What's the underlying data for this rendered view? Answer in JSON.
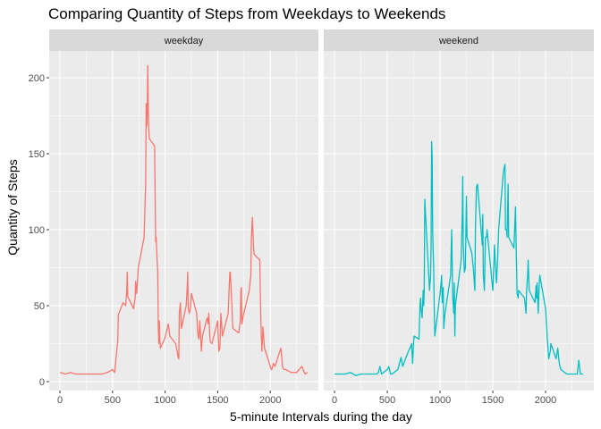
{
  "chart_data": {
    "type": "line",
    "title": "Comparing Quantity of Steps from Weekdays to Weekends",
    "xlabel": "5-minute Intervals during the day",
    "ylabel": "Quantity of Steps",
    "xlim": [
      0,
      2355
    ],
    "ylim": [
      0,
      210
    ],
    "x_ticks": [
      0,
      500,
      1000,
      1500,
      2000
    ],
    "y_ticks": [
      0,
      50,
      100,
      150,
      200
    ],
    "grid": true,
    "legend": "none",
    "panel_background": "#ebebeb",
    "strip_background": "#d9d9d9",
    "grid_color": "#ffffff",
    "series": [
      {
        "name": "weekday",
        "color": "#F8766D",
        "points": [
          [
            0,
            6
          ],
          [
            50,
            5
          ],
          [
            100,
            6
          ],
          [
            150,
            5
          ],
          [
            200,
            5
          ],
          [
            250,
            5
          ],
          [
            300,
            5
          ],
          [
            400,
            5
          ],
          [
            450,
            6
          ],
          [
            500,
            8
          ],
          [
            520,
            6
          ],
          [
            550,
            27
          ],
          [
            555,
            44
          ],
          [
            600,
            52
          ],
          [
            625,
            50
          ],
          [
            635,
            60
          ],
          [
            640,
            72
          ],
          [
            645,
            56
          ],
          [
            700,
            48
          ],
          [
            715,
            55
          ],
          [
            720,
            66
          ],
          [
            730,
            58
          ],
          [
            745,
            75
          ],
          [
            800,
            95
          ],
          [
            815,
            130
          ],
          [
            820,
            183
          ],
          [
            825,
            168
          ],
          [
            830,
            176
          ],
          [
            835,
            208
          ],
          [
            840,
            180
          ],
          [
            845,
            165
          ],
          [
            850,
            160
          ],
          [
            900,
            155
          ],
          [
            910,
            92
          ],
          [
            915,
            95
          ],
          [
            925,
            78
          ],
          [
            930,
            72
          ],
          [
            935,
            36
          ],
          [
            940,
            25
          ],
          [
            945,
            40
          ],
          [
            950,
            27
          ],
          [
            955,
            22
          ],
          [
            1000,
            29
          ],
          [
            1030,
            38
          ],
          [
            1045,
            30
          ],
          [
            1100,
            25
          ],
          [
            1115,
            20
          ],
          [
            1120,
            17
          ],
          [
            1130,
            15
          ],
          [
            1135,
            45
          ],
          [
            1145,
            52
          ],
          [
            1155,
            35
          ],
          [
            1200,
            50
          ],
          [
            1210,
            62
          ],
          [
            1215,
            72
          ],
          [
            1220,
            48
          ],
          [
            1230,
            45
          ],
          [
            1240,
            48
          ],
          [
            1250,
            58
          ],
          [
            1300,
            45
          ],
          [
            1310,
            32
          ],
          [
            1320,
            28
          ],
          [
            1330,
            40
          ],
          [
            1345,
            20
          ],
          [
            1355,
            30
          ],
          [
            1400,
            42
          ],
          [
            1410,
            38
          ],
          [
            1415,
            45
          ],
          [
            1425,
            30
          ],
          [
            1430,
            26
          ],
          [
            1445,
            25
          ],
          [
            1500,
            40
          ],
          [
            1510,
            20
          ],
          [
            1520,
            22
          ],
          [
            1530,
            45
          ],
          [
            1545,
            30
          ],
          [
            1600,
            45
          ],
          [
            1615,
            72
          ],
          [
            1620,
            72
          ],
          [
            1635,
            50
          ],
          [
            1640,
            40
          ],
          [
            1645,
            35
          ],
          [
            1700,
            32
          ],
          [
            1715,
            40
          ],
          [
            1720,
            60
          ],
          [
            1725,
            62
          ],
          [
            1730,
            38
          ],
          [
            1745,
            44
          ],
          [
            1800,
            60
          ],
          [
            1815,
            70
          ],
          [
            1820,
            94
          ],
          [
            1830,
            108
          ],
          [
            1840,
            90
          ],
          [
            1845,
            84
          ],
          [
            1900,
            80
          ],
          [
            1910,
            42
          ],
          [
            1915,
            30
          ],
          [
            1920,
            20
          ],
          [
            1930,
            36
          ],
          [
            1945,
            22
          ],
          [
            2000,
            10
          ],
          [
            2010,
            8
          ],
          [
            2015,
            8
          ],
          [
            2030,
            12
          ],
          [
            2045,
            10
          ],
          [
            2100,
            22
          ],
          [
            2110,
            16
          ],
          [
            2115,
            10
          ],
          [
            2130,
            8
          ],
          [
            2145,
            8
          ],
          [
            2200,
            6
          ],
          [
            2250,
            6
          ],
          [
            2300,
            10
          ],
          [
            2330,
            5
          ],
          [
            2355,
            6
          ]
        ]
      },
      {
        "name": "weekend",
        "color": "#00BFC4",
        "points": [
          [
            0,
            5
          ],
          [
            100,
            5
          ],
          [
            150,
            6
          ],
          [
            200,
            4
          ],
          [
            250,
            5
          ],
          [
            300,
            5
          ],
          [
            400,
            5
          ],
          [
            415,
            6
          ],
          [
            430,
            10
          ],
          [
            445,
            5
          ],
          [
            500,
            8
          ],
          [
            515,
            10
          ],
          [
            530,
            5
          ],
          [
            545,
            5
          ],
          [
            600,
            8
          ],
          [
            615,
            12
          ],
          [
            630,
            16
          ],
          [
            645,
            10
          ],
          [
            700,
            20
          ],
          [
            715,
            22
          ],
          [
            730,
            25
          ],
          [
            740,
            12
          ],
          [
            750,
            27
          ],
          [
            755,
            30
          ],
          [
            800,
            28
          ],
          [
            810,
            50
          ],
          [
            815,
            55
          ],
          [
            820,
            48
          ],
          [
            830,
            42
          ],
          [
            840,
            60
          ],
          [
            845,
            50
          ],
          [
            850,
            60
          ],
          [
            855,
            120
          ],
          [
            900,
            60
          ],
          [
            910,
            70
          ],
          [
            915,
            88
          ],
          [
            920,
            158
          ],
          [
            925,
            148
          ],
          [
            930,
            98
          ],
          [
            940,
            72
          ],
          [
            945,
            48
          ],
          [
            950,
            30
          ],
          [
            1000,
            58
          ],
          [
            1015,
            70
          ],
          [
            1020,
            52
          ],
          [
            1030,
            62
          ],
          [
            1035,
            35
          ],
          [
            1045,
            44
          ],
          [
            1100,
            70
          ],
          [
            1110,
            100
          ],
          [
            1115,
            78
          ],
          [
            1120,
            55
          ],
          [
            1130,
            45
          ],
          [
            1135,
            65
          ],
          [
            1140,
            30
          ],
          [
            1145,
            50
          ],
          [
            1200,
            80
          ],
          [
            1210,
            108
          ],
          [
            1215,
            135
          ],
          [
            1220,
            90
          ],
          [
            1230,
            72
          ],
          [
            1240,
            75
          ],
          [
            1250,
            122
          ],
          [
            1255,
            95
          ],
          [
            1300,
            85
          ],
          [
            1315,
            75
          ],
          [
            1330,
            60
          ],
          [
            1335,
            100
          ],
          [
            1345,
            128
          ],
          [
            1355,
            130
          ],
          [
            1400,
            90
          ],
          [
            1405,
            110
          ],
          [
            1410,
            70
          ],
          [
            1420,
            60
          ],
          [
            1430,
            95
          ],
          [
            1440,
            95
          ],
          [
            1445,
            100
          ],
          [
            1500,
            60
          ],
          [
            1510,
            78
          ],
          [
            1515,
            90
          ],
          [
            1530,
            70
          ],
          [
            1535,
            65
          ],
          [
            1545,
            80
          ],
          [
            1555,
            100
          ],
          [
            1600,
            138
          ],
          [
            1615,
            143
          ],
          [
            1620,
            100
          ],
          [
            1630,
            100
          ],
          [
            1635,
            95
          ],
          [
            1645,
            130
          ],
          [
            1650,
            95
          ],
          [
            1700,
            88
          ],
          [
            1715,
            115
          ],
          [
            1720,
            92
          ],
          [
            1730,
            58
          ],
          [
            1740,
            55
          ],
          [
            1745,
            60
          ],
          [
            1800,
            55
          ],
          [
            1815,
            45
          ],
          [
            1820,
            60
          ],
          [
            1830,
            70
          ],
          [
            1835,
            80
          ],
          [
            1845,
            60
          ],
          [
            1900,
            52
          ],
          [
            1910,
            63
          ],
          [
            1915,
            55
          ],
          [
            1920,
            65
          ],
          [
            1930,
            45
          ],
          [
            1940,
            65
          ],
          [
            1945,
            70
          ],
          [
            2000,
            48
          ],
          [
            2015,
            30
          ],
          [
            2030,
            15
          ],
          [
            2045,
            20
          ],
          [
            2050,
            25
          ],
          [
            2100,
            15
          ],
          [
            2115,
            22
          ],
          [
            2130,
            12
          ],
          [
            2145,
            8
          ],
          [
            2200,
            5
          ],
          [
            2250,
            5
          ],
          [
            2300,
            5
          ],
          [
            2315,
            14
          ],
          [
            2330,
            5
          ],
          [
            2355,
            5
          ]
        ]
      }
    ]
  }
}
